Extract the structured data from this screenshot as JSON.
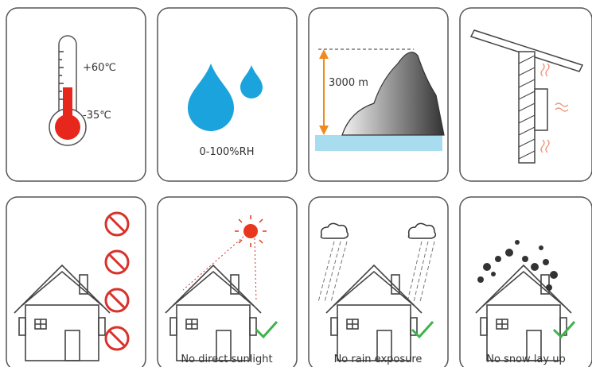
{
  "temperature": {
    "max": "+60℃",
    "min": "-35℃"
  },
  "humidity": {
    "label": "0-100%RH"
  },
  "altitude": {
    "label": "3000 m"
  },
  "conditions": [
    {
      "caption": "No direct sunlight"
    },
    {
      "caption": "No rain exposure"
    },
    {
      "caption": "No snow lay up"
    }
  ]
}
